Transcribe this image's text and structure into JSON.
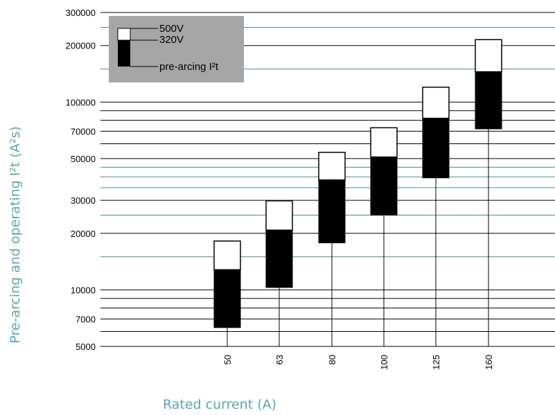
{
  "chart_data": {
    "type": "bar",
    "title": "",
    "xlabel": "Rated current (A)",
    "ylabel": "Pre-arcing and operating I²t (A²s)",
    "y_scale": "log",
    "ylim": [
      5000,
      300000
    ],
    "y_ticks": [
      {
        "value": 300000,
        "label": "300000"
      },
      {
        "value": 200000,
        "label": "200000"
      },
      {
        "value": 100000,
        "label": "100000"
      },
      {
        "value": 70000,
        "label": "70000"
      },
      {
        "value": 50000,
        "label": "50000"
      },
      {
        "value": 30000,
        "label": "30000"
      },
      {
        "value": 20000,
        "label": "20000"
      },
      {
        "value": 10000,
        "label": "10000"
      },
      {
        "value": 7000,
        "label": "7000"
      },
      {
        "value": 5000,
        "label": "5000"
      }
    ],
    "gridlines_black": [
      300000,
      200000,
      100000,
      90000,
      80000,
      70000,
      60000,
      50000,
      30000,
      20000,
      10000,
      9000,
      8000,
      7000,
      6000,
      5000
    ],
    "gridlines_teal": [
      250000,
      150000,
      45000,
      40000,
      35000,
      25000,
      15000
    ],
    "grid": true,
    "categories": [
      "50",
      "63",
      "80",
      "100",
      "125",
      "160"
    ],
    "series": [
      {
        "name": "pre-arcing I²t",
        "color": "#000000",
        "low": [
          6300,
          10300,
          17800,
          25000,
          39500,
          72000
        ],
        "high": [
          12800,
          20800,
          38500,
          51000,
          82000,
          145000
        ]
      },
      {
        "name": "320V",
        "color": "#000000",
        "values": [
          12800,
          20800,
          38500,
          51000,
          82000,
          145000
        ]
      },
      {
        "name": "500V",
        "color": "#ffffff",
        "values": [
          18200,
          29800,
          54000,
          73000,
          120000,
          215000
        ]
      }
    ],
    "legend": {
      "position": "top-left",
      "background": "#a6a6a6",
      "items": [
        "500V",
        "320V",
        "pre-arcing I²t"
      ]
    },
    "colors": {
      "axis_title": "#5aa6b0",
      "teal_grid": "#4e8a91",
      "black_grid": "#000000"
    }
  }
}
